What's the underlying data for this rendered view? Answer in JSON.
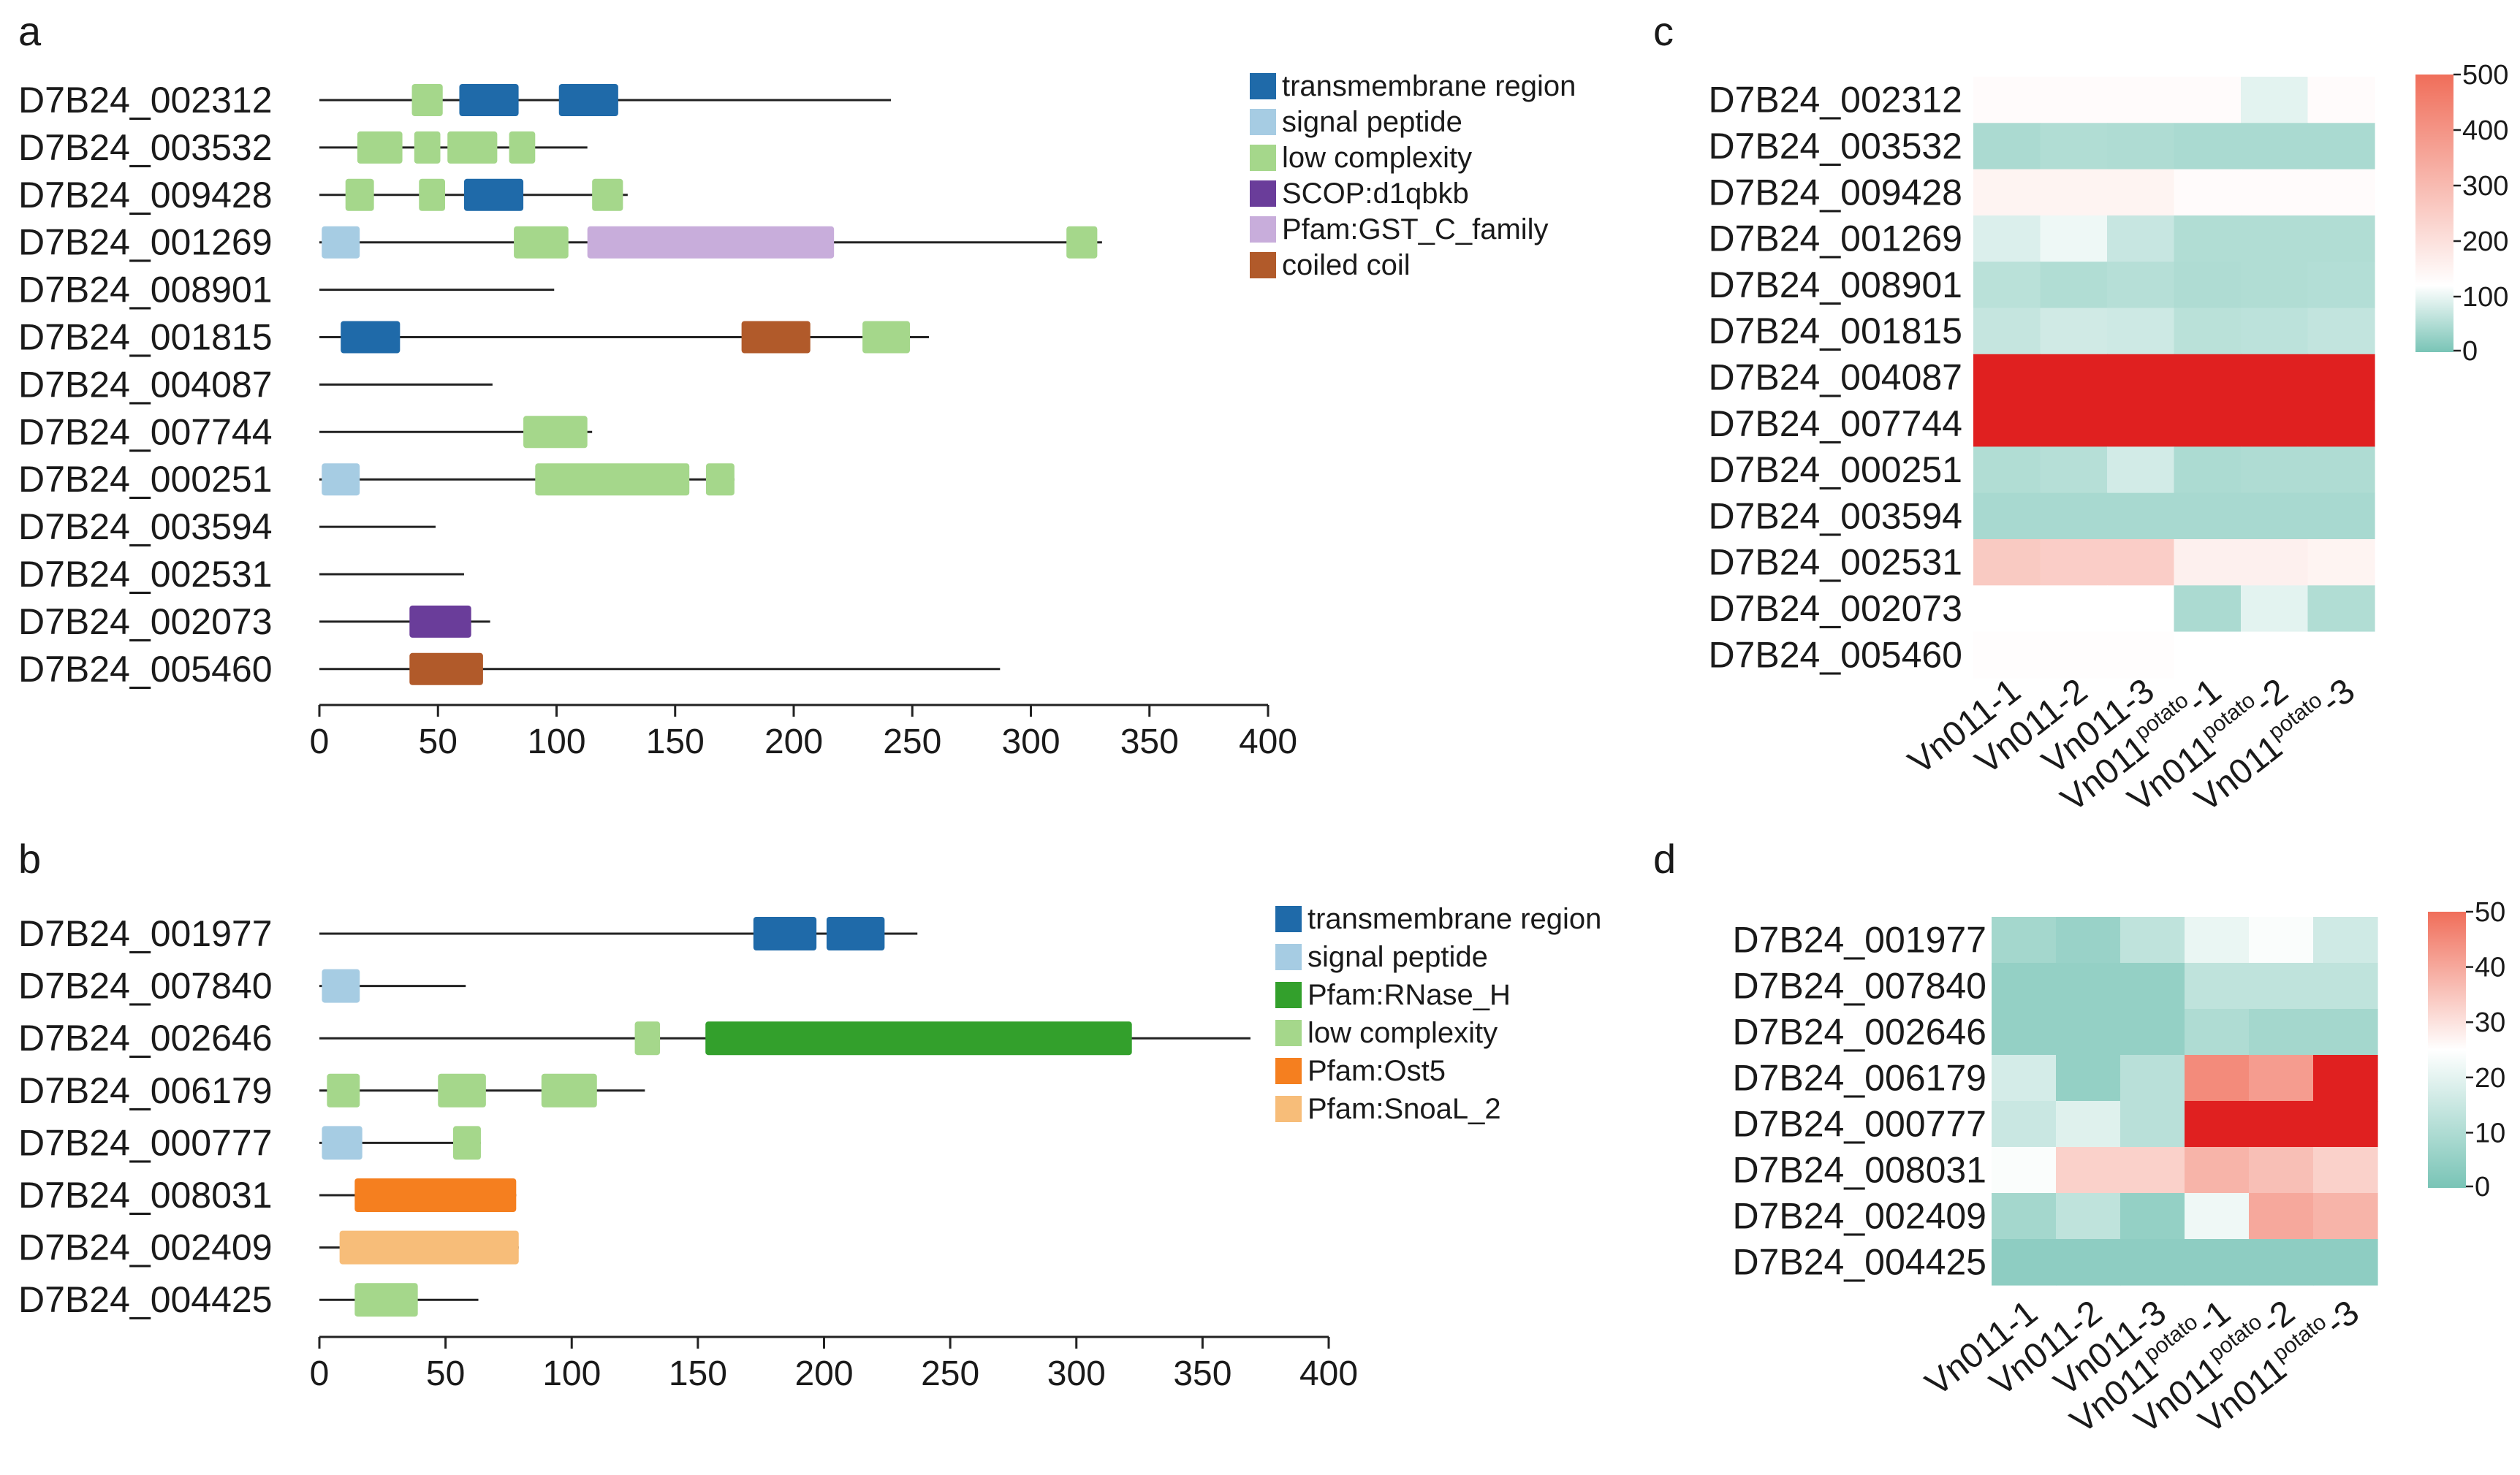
{
  "panels": [
    {
      "letter": "a",
      "type": "domain_diagram",
      "axis": {
        "min": 0,
        "max": 400,
        "ticks": [
          0,
          50,
          100,
          150,
          200,
          250,
          300,
          350,
          400
        ]
      },
      "legend": [
        {
          "key": "tm",
          "label": "transmembrane region",
          "color": "#1f6aa9"
        },
        {
          "key": "sp",
          "label": "signal peptide",
          "color": "#a6cce3"
        },
        {
          "key": "lc",
          "label": "low complexity",
          "color": "#a5d78b"
        },
        {
          "key": "scop",
          "label": "SCOP:d1qbkb",
          "color": "#6a3d9a"
        },
        {
          "key": "gst",
          "label": "Pfam:GST_C_family",
          "color": "#c8addb"
        },
        {
          "key": "cc",
          "label": "coiled coil",
          "color": "#b15a2a"
        }
      ],
      "genes": [
        {
          "id": "D7B24_002312",
          "length": 241,
          "domains": [
            {
              "type": "lc",
              "start": 39,
              "end": 52
            },
            {
              "type": "tm",
              "start": 59,
              "end": 84
            },
            {
              "type": "tm",
              "start": 101,
              "end": 126
            }
          ]
        },
        {
          "id": "D7B24_003532",
          "length": 113,
          "domains": [
            {
              "type": "lc",
              "start": 16,
              "end": 35
            },
            {
              "type": "lc",
              "start": 40,
              "end": 51
            },
            {
              "type": "lc",
              "start": 54,
              "end": 75
            },
            {
              "type": "lc",
              "start": 80,
              "end": 91
            }
          ]
        },
        {
          "id": "D7B24_009428",
          "length": 130,
          "domains": [
            {
              "type": "lc",
              "start": 11,
              "end": 23
            },
            {
              "type": "lc",
              "start": 42,
              "end": 53
            },
            {
              "type": "tm",
              "start": 61,
              "end": 86
            },
            {
              "type": "lc",
              "start": 115,
              "end": 128
            }
          ]
        },
        {
          "id": "D7B24_001269",
          "length": 330,
          "domains": [
            {
              "type": "sp",
              "start": 1,
              "end": 17
            },
            {
              "type": "lc",
              "start": 82,
              "end": 105
            },
            {
              "type": "gst",
              "start": 113,
              "end": 217
            },
            {
              "type": "lc",
              "start": 315,
              "end": 328
            }
          ]
        },
        {
          "id": "D7B24_008901",
          "length": 99,
          "domains": []
        },
        {
          "id": "D7B24_001815",
          "length": 257,
          "domains": [
            {
              "type": "tm",
              "start": 9,
              "end": 34
            },
            {
              "type": "cc",
              "start": 178,
              "end": 207
            },
            {
              "type": "lc",
              "start": 229,
              "end": 249
            }
          ]
        },
        {
          "id": "D7B24_004087",
          "length": 73,
          "domains": []
        },
        {
          "id": "D7B24_007744",
          "length": 115,
          "domains": [
            {
              "type": "lc",
              "start": 86,
              "end": 113
            }
          ]
        },
        {
          "id": "D7B24_000251",
          "length": 175,
          "domains": [
            {
              "type": "sp",
              "start": 1,
              "end": 17
            },
            {
              "type": "lc",
              "start": 91,
              "end": 156
            },
            {
              "type": "lc",
              "start": 163,
              "end": 175
            }
          ]
        },
        {
          "id": "D7B24_003594",
          "length": 49,
          "domains": []
        },
        {
          "id": "D7B24_002531",
          "length": 61,
          "domains": []
        },
        {
          "id": "D7B24_002073",
          "length": 72,
          "domains": [
            {
              "type": "scop",
              "start": 38,
              "end": 64
            }
          ]
        },
        {
          "id": "D7B24_005460",
          "length": 287,
          "domains": [
            {
              "type": "cc",
              "start": 38,
              "end": 69
            }
          ]
        }
      ]
    },
    {
      "letter": "b",
      "type": "domain_diagram",
      "axis": {
        "min": 0,
        "max": 400,
        "ticks": [
          0,
          50,
          100,
          150,
          200,
          250,
          300,
          350,
          400
        ]
      },
      "legend": [
        {
          "key": "tm",
          "label": "transmembrane region",
          "color": "#1f6aa9"
        },
        {
          "key": "sp",
          "label": "signal peptide",
          "color": "#a6cce3"
        },
        {
          "key": "rnase",
          "label": "Pfam:RNase_H",
          "color": "#33a02c"
        },
        {
          "key": "lc",
          "label": "low complexity",
          "color": "#a5d78b"
        },
        {
          "key": "ost5",
          "label": "Pfam:Ost5",
          "color": "#f57f1f"
        },
        {
          "key": "snoal",
          "label": "Pfam:SnoaL_2",
          "color": "#f7bd79"
        }
      ],
      "genes": [
        {
          "id": "D7B24_001977",
          "length": 237,
          "domains": [
            {
              "type": "tm",
              "start": 172,
              "end": 197
            },
            {
              "type": "tm",
              "start": 201,
              "end": 224
            }
          ]
        },
        {
          "id": "D7B24_007840",
          "length": 58,
          "domains": [
            {
              "type": "sp",
              "start": 1,
              "end": 16
            }
          ]
        },
        {
          "id": "D7B24_002646",
          "length": 369,
          "domains": [
            {
              "type": "lc",
              "start": 125,
              "end": 135
            },
            {
              "type": "rnase",
              "start": 153,
              "end": 322
            }
          ]
        },
        {
          "id": "D7B24_006179",
          "length": 129,
          "domains": [
            {
              "type": "lc",
              "start": 3,
              "end": 16
            },
            {
              "type": "lc",
              "start": 47,
              "end": 66
            },
            {
              "type": "lc",
              "start": 88,
              "end": 110
            }
          ]
        },
        {
          "id": "D7B24_000777",
          "length": 64,
          "domains": [
            {
              "type": "sp",
              "start": 1,
              "end": 17
            },
            {
              "type": "lc",
              "start": 53,
              "end": 64
            }
          ]
        },
        {
          "id": "D7B24_008031",
          "length": 78,
          "domains": [
            {
              "type": "ost5",
              "start": 14,
              "end": 78
            }
          ]
        },
        {
          "id": "D7B24_002409",
          "length": 79,
          "domains": [
            {
              "type": "snoal",
              "start": 8,
              "end": 79
            }
          ]
        },
        {
          "id": "D7B24_004425",
          "length": 63,
          "domains": [
            {
              "type": "lc",
              "start": 14,
              "end": 39
            }
          ]
        }
      ]
    },
    {
      "letter": "c",
      "type": "heatmap",
      "colorbar": {
        "ticks": [
          "500",
          "400",
          "300",
          "200",
          "100",
          "0"
        ]
      },
      "rows": [
        "D7B24_002312",
        "D7B24_003532",
        "D7B24_009428",
        "D7B24_001269",
        "D7B24_008901",
        "D7B24_001815",
        "D7B24_004087",
        "D7B24_007744",
        "D7B24_000251",
        "D7B24_003594",
        "D7B24_002531",
        "D7B24_002073",
        "D7B24_005460"
      ]
    },
    {
      "letter": "d",
      "type": "heatmap",
      "colorbar": {
        "ticks": [
          "50",
          "40",
          "30",
          "20",
          "10",
          "0"
        ]
      },
      "rows": [
        "D7B24_001977",
        "D7B24_007840",
        "D7B24_002646",
        "D7B24_006179",
        "D7B24_000777",
        "D7B24_008031",
        "D7B24_002409",
        "D7B24_004425"
      ]
    }
  ],
  "chart_data": [
    {
      "type": "heatmap",
      "title": "c",
      "rows": [
        "D7B24_002312",
        "D7B24_003532",
        "D7B24_009428",
        "D7B24_001269",
        "D7B24_008901",
        "D7B24_001815",
        "D7B24_004087",
        "D7B24_007744",
        "D7B24_000251",
        "D7B24_003594",
        "D7B24_002531",
        "D7B24_002073",
        "D7B24_005460"
      ],
      "columns": [
        {
          "base": "Vn011",
          "sup": "",
          "suffix": "-1"
        },
        {
          "base": "Vn011",
          "sup": "",
          "suffix": "-2"
        },
        {
          "base": "Vn011",
          "sup": "",
          "suffix": "-3"
        },
        {
          "base": "Vn011",
          "sup": "potato",
          "suffix": "-1"
        },
        {
          "base": "Vn011",
          "sup": "potato",
          "suffix": "-2"
        },
        {
          "base": "Vn011",
          "sup": "potato",
          "suffix": "-3"
        }
      ],
      "scale": {
        "min": 0,
        "mid": 120,
        "max": 500,
        "low_color": "#79c4b6",
        "mid_color": "#ffffff",
        "high_color": "#f06e5a"
      },
      "overflow_color": "#e02020",
      "values": [
        [
          130,
          130,
          130,
          130,
          95,
          130
        ],
        [
          45,
          50,
          48,
          44,
          44,
          44
        ],
        [
          150,
          150,
          150,
          130,
          130,
          130
        ],
        [
          88,
          105,
          70,
          50,
          50,
          50
        ],
        [
          58,
          50,
          55,
          48,
          50,
          52
        ],
        [
          68,
          78,
          75,
          58,
          60,
          65
        ],
        [
          1500,
          1700,
          1700,
          1100,
          1200,
          1000
        ],
        [
          1400,
          1200,
          1300,
          850,
          900,
          600
        ],
        [
          50,
          55,
          80,
          46,
          48,
          48
        ],
        [
          42,
          42,
          42,
          42,
          42,
          42
        ],
        [
          260,
          250,
          250,
          160,
          160,
          150
        ],
        [
          120,
          120,
          120,
          45,
          95,
          50
        ],
        [
          125,
          125,
          125,
          120,
          120,
          120
        ]
      ]
    },
    {
      "type": "heatmap",
      "title": "d",
      "rows": [
        "D7B24_001977",
        "D7B24_007840",
        "D7B24_002646",
        "D7B24_006179",
        "D7B24_000777",
        "D7B24_008031",
        "D7B24_002409",
        "D7B24_004425"
      ],
      "columns": [
        {
          "base": "Vn011",
          "sup": "",
          "suffix": "-1"
        },
        {
          "base": "Vn011",
          "sup": "",
          "suffix": "-2"
        },
        {
          "base": "Vn011",
          "sup": "",
          "suffix": "-3"
        },
        {
          "base": "Vn011",
          "sup": "potato",
          "suffix": "-1"
        },
        {
          "base": "Vn011",
          "sup": "potato",
          "suffix": "-2"
        },
        {
          "base": "Vn011",
          "sup": "potato",
          "suffix": "-3"
        }
      ],
      "scale": {
        "min": 0,
        "mid": 25,
        "max": 50,
        "low_color": "#79c4b6",
        "mid_color": "#ffffff",
        "high_color": "#f06e5a"
      },
      "overflow_color": "#e02020",
      "values": [
        [
          8,
          6,
          13,
          21,
          24,
          16
        ],
        [
          5,
          5,
          5,
          13,
          13,
          13
        ],
        [
          5,
          5,
          5,
          10,
          8,
          8
        ],
        [
          17,
          5,
          12,
          45,
          42,
          70
        ],
        [
          15,
          19,
          12,
          70,
          70,
          70
        ],
        [
          24,
          33,
          33,
          38,
          36,
          33
        ],
        [
          8,
          13,
          5,
          22,
          40,
          38
        ],
        [
          4,
          4,
          4,
          4,
          4,
          4
        ]
      ]
    }
  ]
}
